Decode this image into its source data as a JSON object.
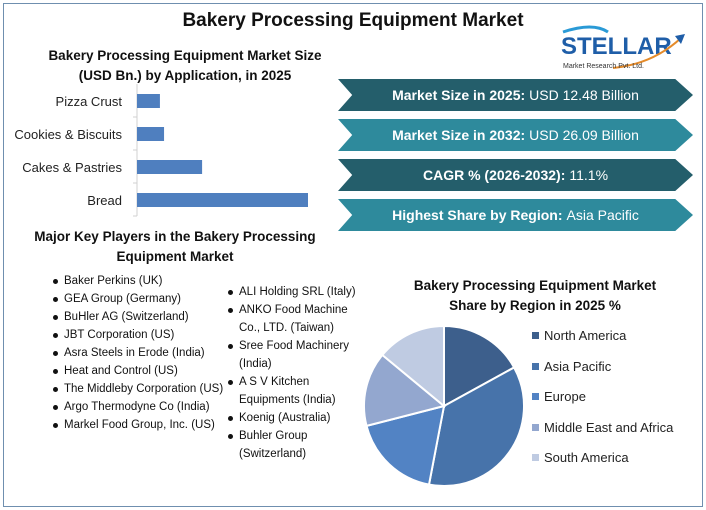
{
  "title": "Bakery Processing Equipment Market",
  "logo": {
    "name": "STELLAR",
    "sub": "Market Research Pvt. Ltd."
  },
  "colors": {
    "bar": "#4f7fbf",
    "banner_dark": "#245e6b",
    "banner_light": "#2e8a9c"
  },
  "banners": [
    {
      "label": "Market Size in 2025:",
      "value": "USD 12.48 Billion",
      "color": "#245e6b"
    },
    {
      "label": "Market Size in 2032:",
      "value": "USD 26.09 Billion",
      "color": "#2e8a9c"
    },
    {
      "label": "CAGR % (2026-2032):",
      "value": "11.1%",
      "color": "#245e6b"
    },
    {
      "label": "Highest Share by Region:",
      "value": "Asia Pacific",
      "color": "#2e8a9c"
    }
  ],
  "key_players": {
    "title": "Major Key Players in the Bakery Processing Equipment Market",
    "col1": [
      "Baker Perkins (UK)",
      "GEA Group (Germany)",
      "BuHler AG (Switzerland)",
      "JBT Corporation (US)",
      "Asra Steels in Erode (India)",
      "Heat and Control (US)",
      "The Middleby Corporation (US)",
      "Argo Thermodyne Co (India)",
      "Markel Food Group, Inc. (US)"
    ],
    "col2": [
      "ALI Holding SRL (Italy)",
      "ANKO Food Machine Co., LTD. (Taiwan)",
      "Sree Food Machinery (India)",
      "A S V Kitchen Equipments (India)",
      "Koenig (Australia)",
      "Buhler Group (Switzerland)"
    ]
  },
  "chart_data": [
    {
      "type": "bar",
      "orientation": "horizontal",
      "title": "Bakery Processing Equipment Market Size (USD Bn.) by Application, in 2025",
      "categories": [
        "Pizza Crust",
        "Cookies & Biscuits",
        "Cakes & Pastries",
        "Bread"
      ],
      "values": [
        1.0,
        1.18,
        2.84,
        7.46
      ],
      "grid": false,
      "color": "#4f7fbf"
    },
    {
      "type": "pie",
      "title": "Bakery Processing Equipment Market Share by Region in 2025 %",
      "categories": [
        "North America",
        "Asia Pacific",
        "Europe",
        "Middle East and Africa",
        "South America"
      ],
      "values": [
        17,
        36,
        18,
        15,
        14
      ],
      "colors": [
        "#3d5f8c",
        "#4773aa",
        "#5283c4",
        "#93a7cf",
        "#bfcbe2"
      ],
      "legend": "right"
    }
  ]
}
